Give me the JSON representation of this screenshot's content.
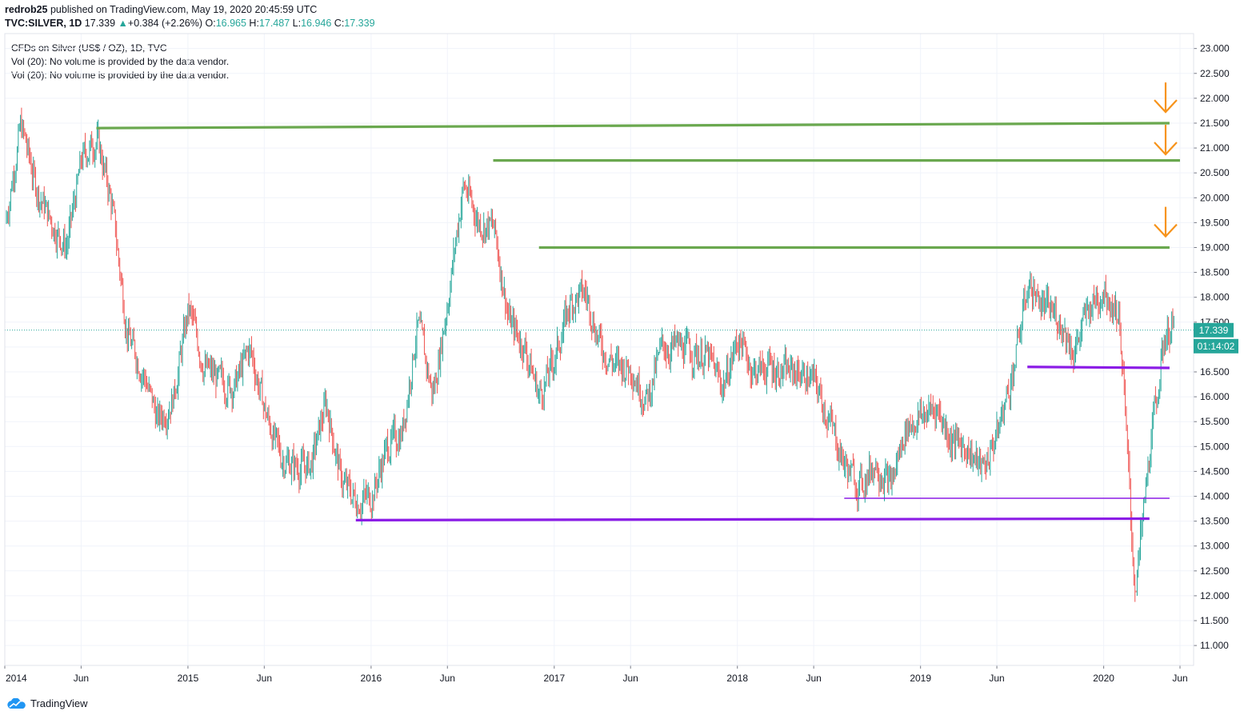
{
  "header": {
    "publisher": "redrob25",
    "published_text": " published on TradingView.com, May 19, 2020 20:45:59 UTC",
    "symbol": "TVC:SILVER, 1D",
    "last": "17.339",
    "change": "+0.384 (+2.26%)",
    "open_label": "O:",
    "open": "16.965",
    "high_label": "H:",
    "high": "17.487",
    "low_label": "L:",
    "low": "16.946",
    "close_label": "C:",
    "close": "17.339"
  },
  "legend": {
    "title": "CFDs on Silver (US$ / OZ), 1D, TVC",
    "vol1": "Vol (20): No volume is provided by the data vendor.",
    "vol2": "Vol (20): No volume is provided by the data vendor."
  },
  "price_badge": "17.339",
  "countdown_badge": "01:14:02",
  "brand": "TradingView",
  "colors": {
    "up": "#26a69a",
    "down": "#ef5350",
    "green_line": "#6aa84f",
    "purple_line": "#8b1ce6",
    "arrow": "#f7931a",
    "price_line": "#26a69a"
  },
  "chart_data": {
    "type": "candlestick",
    "title": "CFDs on Silver (US$ / OZ), 1D, TVC",
    "ylim": [
      10.6,
      23.3
    ],
    "y_ticks": [
      "11.000",
      "11.500",
      "12.000",
      "12.500",
      "13.000",
      "13.500",
      "14.000",
      "14.500",
      "15.000",
      "15.500",
      "16.000",
      "16.500",
      "17.000",
      "17.500",
      "18.000",
      "18.500",
      "19.000",
      "19.500",
      "20.000",
      "20.500",
      "21.000",
      "21.500",
      "22.000",
      "22.500",
      "23.000"
    ],
    "x_ticks": [
      "2014",
      "Jun",
      "2015",
      "Jun",
      "2016",
      "Jun",
      "2017",
      "Jun",
      "2018",
      "Jun",
      "2019",
      "Jun",
      "2020",
      "Jun"
    ],
    "x_tick_dates": [
      "2014-01",
      "2014-06",
      "2015-01",
      "2015-06",
      "2016-01",
      "2016-06",
      "2017-01",
      "2017-06",
      "2018-01",
      "2018-06",
      "2019-01",
      "2019-06",
      "2020-01",
      "2020-06"
    ],
    "price_path": [
      [
        "2014-01",
        19.5
      ],
      [
        "2014-02",
        21.5
      ],
      [
        "2014-03",
        20.2
      ],
      [
        "2014-04",
        19.5
      ],
      [
        "2014-05",
        19.0
      ],
      [
        "2014-06",
        20.8
      ],
      [
        "2014-07",
        21.2
      ],
      [
        "2014-08",
        19.8
      ],
      [
        "2014-09",
        17.2
      ],
      [
        "2014-10",
        16.5
      ],
      [
        "2014-11",
        15.5
      ],
      [
        "2014-12",
        16.0
      ],
      [
        "2015-01",
        17.8
      ],
      [
        "2015-02",
        16.6
      ],
      [
        "2015-03",
        16.3
      ],
      [
        "2015-04",
        16.2
      ],
      [
        "2015-05",
        17.0
      ],
      [
        "2015-06",
        15.7
      ],
      [
        "2015-07",
        14.8
      ],
      [
        "2015-08",
        14.6
      ],
      [
        "2015-09",
        14.6
      ],
      [
        "2015-10",
        15.9
      ],
      [
        "2015-11",
        14.3
      ],
      [
        "2015-12",
        13.9
      ],
      [
        "2016-01",
        14.0
      ],
      [
        "2016-02",
        15.0
      ],
      [
        "2016-03",
        15.3
      ],
      [
        "2016-04",
        17.5
      ],
      [
        "2016-05",
        16.0
      ],
      [
        "2016-06",
        18.0
      ],
      [
        "2016-07",
        20.3
      ],
      [
        "2016-08",
        19.5
      ],
      [
        "2016-09",
        19.4
      ],
      [
        "2016-10",
        17.5
      ],
      [
        "2016-11",
        17.0
      ],
      [
        "2016-12",
        16.0
      ],
      [
        "2017-01",
        16.8
      ],
      [
        "2017-02",
        17.9
      ],
      [
        "2017-03",
        18.1
      ],
      [
        "2017-04",
        17.0
      ],
      [
        "2017-05",
        16.6
      ],
      [
        "2017-06",
        16.6
      ],
      [
        "2017-07",
        15.9
      ],
      [
        "2017-08",
        17.0
      ],
      [
        "2017-09",
        17.0
      ],
      [
        "2017-10",
        16.9
      ],
      [
        "2017-11",
        16.8
      ],
      [
        "2017-12",
        16.2
      ],
      [
        "2018-01",
        17.2
      ],
      [
        "2018-02",
        16.5
      ],
      [
        "2018-03",
        16.6
      ],
      [
        "2018-04",
        16.5
      ],
      [
        "2018-05",
        16.5
      ],
      [
        "2018-06",
        16.3
      ],
      [
        "2018-07",
        15.5
      ],
      [
        "2018-08",
        14.6
      ],
      [
        "2018-09",
        14.2
      ],
      [
        "2018-10",
        14.7
      ],
      [
        "2018-11",
        14.2
      ],
      [
        "2018-12",
        15.4
      ],
      [
        "2019-01",
        15.6
      ],
      [
        "2019-02",
        15.8
      ],
      [
        "2019-03",
        15.1
      ],
      [
        "2019-04",
        15.0
      ],
      [
        "2019-05",
        14.5
      ],
      [
        "2019-06",
        15.3
      ],
      [
        "2019-07",
        16.5
      ],
      [
        "2019-08",
        18.3
      ],
      [
        "2019-09",
        17.8
      ],
      [
        "2019-10",
        17.6
      ],
      [
        "2019-11",
        16.9
      ],
      [
        "2019-12",
        17.8
      ],
      [
        "2020-01",
        18.2
      ],
      [
        "2020-02",
        17.6
      ],
      [
        "2020-03",
        12.0
      ],
      [
        "2020-04",
        15.0
      ],
      [
        "2020-05",
        17.339
      ]
    ],
    "horizontal_lines": [
      {
        "color": "green",
        "from": [
          "2014-07",
          21.4
        ],
        "to": [
          "2020-05",
          21.5
        ]
      },
      {
        "color": "green",
        "from": [
          "2016-09",
          20.75
        ],
        "to": [
          "2020-06",
          20.75
        ]
      },
      {
        "color": "green",
        "from": [
          "2016-12",
          19.0
        ],
        "to": [
          "2020-05",
          19.0
        ]
      },
      {
        "color": "purple",
        "from": [
          "2019-08",
          16.6
        ],
        "to": [
          "2020-05",
          16.58
        ]
      },
      {
        "color": "purple",
        "from": [
          "2018-08",
          13.96
        ],
        "to": [
          "2020-05",
          13.96
        ]
      },
      {
        "color": "purple",
        "from": [
          "2015-12",
          13.52
        ],
        "to": [
          "2020-04",
          13.55
        ]
      }
    ],
    "arrows_at_price": [
      21.9,
      21.05,
      19.4
    ],
    "last_price": 17.339
  }
}
